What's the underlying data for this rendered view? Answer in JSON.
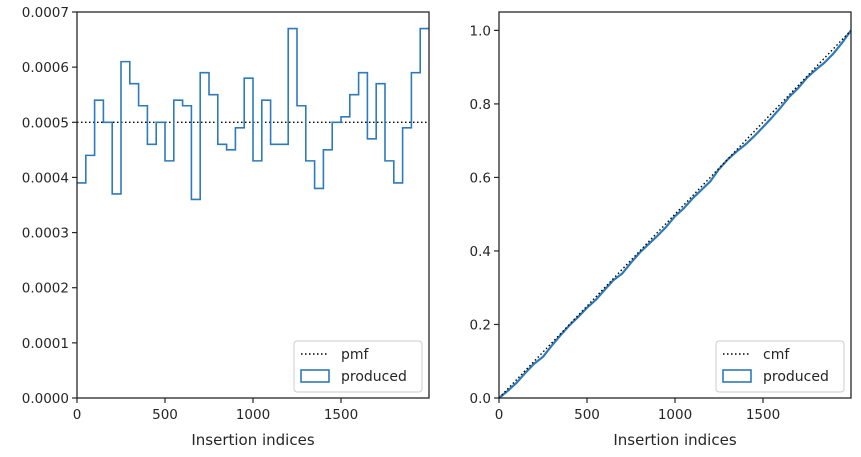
{
  "chart_data": [
    {
      "type": "histogram",
      "xlabel": "Insertion indices",
      "ylabel": "",
      "xlim": [
        0,
        2000
      ],
      "ylim": [
        0,
        0.0007
      ],
      "x_ticks": [
        0,
        500,
        1000,
        1500
      ],
      "x_tick_labels": [
        "0",
        "500",
        "1000",
        "1500"
      ],
      "y_ticks": [
        0,
        0.0001,
        0.0002,
        0.0003,
        0.0004,
        0.0005,
        0.0006,
        0.0007
      ],
      "y_tick_labels": [
        "0.0000",
        "0.0001",
        "0.0002",
        "0.0003",
        "0.0004",
        "0.0005",
        "0.0006",
        "0.0007"
      ],
      "legend_location": "lower-right",
      "reference": {
        "name": "pmf",
        "style": "dotted",
        "color": "#000000",
        "value": 0.0005
      },
      "series": [
        {
          "name": "produced",
          "style": "step",
          "color": "#2f7ab9",
          "bin_width": 50,
          "bin_edges_start": 0,
          "values": [
            0.00039,
            0.00044,
            0.00054,
            0.0005,
            0.00037,
            0.00061,
            0.00057,
            0.00053,
            0.00046,
            0.0005,
            0.00043,
            0.00054,
            0.00053,
            0.00036,
            0.00059,
            0.00055,
            0.00046,
            0.00045,
            0.00049,
            0.00058,
            0.00043,
            0.00054,
            0.00046,
            0.00046,
            0.00067,
            0.00053,
            0.00043,
            0.00038,
            0.00045,
            0.0005,
            0.00051,
            0.00055,
            0.00059,
            0.00047,
            0.00057,
            0.00043,
            0.00039,
            0.00049,
            0.00059,
            0.00067
          ]
        }
      ]
    },
    {
      "type": "line",
      "xlabel": "Insertion indices",
      "ylabel": "",
      "xlim": [
        0,
        2000
      ],
      "ylim": [
        0,
        1.05
      ],
      "x_ticks": [
        0,
        500,
        1000,
        1500
      ],
      "x_tick_labels": [
        "0",
        "500",
        "1000",
        "1500"
      ],
      "y_ticks": [
        0,
        0.2,
        0.4,
        0.6,
        0.8,
        1.0
      ],
      "y_tick_labels": [
        "0.0",
        "0.2",
        "0.4",
        "0.6",
        "0.8",
        "1.0"
      ],
      "legend_location": "lower-right",
      "reference": {
        "name": "cmf",
        "style": "dotted",
        "color": "#000000",
        "from": [
          0,
          0
        ],
        "to": [
          2000,
          1.0
        ]
      },
      "series": [
        {
          "name": "produced",
          "style": "step",
          "color": "#2f7ab9"
        }
      ]
    }
  ]
}
